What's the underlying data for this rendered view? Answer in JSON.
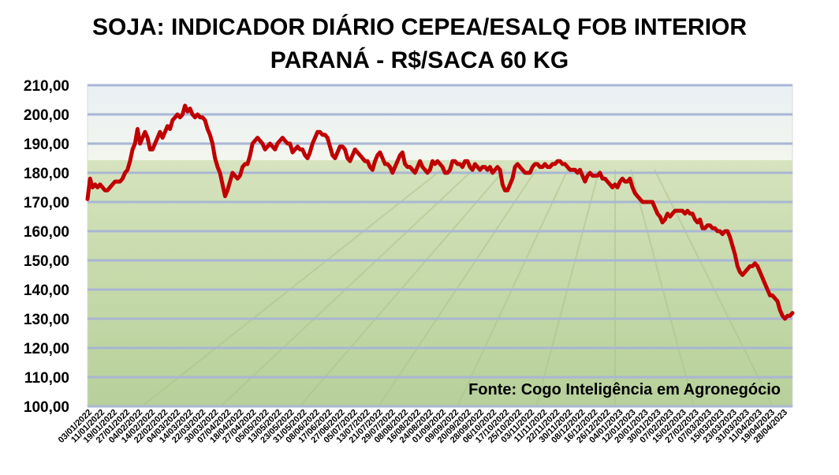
{
  "chart_data": {
    "type": "line",
    "title": "SOJA: INDICADOR DIÁRIO CEPEA/ESALQ FOB INTERIOR",
    "subtitle": "PARANÁ - R$/SACA 60 KG",
    "annotation": "Fonte: Cogo Inteligência em Agronegócio",
    "ylim": [
      100,
      210
    ],
    "yticks": [
      "100,00",
      "110,00",
      "120,00",
      "130,00",
      "140,00",
      "150,00",
      "160,00",
      "170,00",
      "180,00",
      "190,00",
      "200,00",
      "210,00"
    ],
    "xticks": [
      "03/01/2022",
      "11/01/2022",
      "19/01/2022",
      "27/01/2022",
      "04/02/2022",
      "14/02/2022",
      "22/02/2022",
      "04/03/2022",
      "14/03/2022",
      "22/03/2022",
      "30/03/2022",
      "07/04/2022",
      "18/04/2022",
      "27/04/2022",
      "05/05/2022",
      "13/05/2022",
      "23/05/2022",
      "31/05/2022",
      "08/06/2022",
      "17/06/2022",
      "27/06/2022",
      "05/07/2022",
      "13/07/2022",
      "21/07/2022",
      "29/07/2022",
      "08/08/2022",
      "16/08/2022",
      "24/08/2022",
      "01/09/2022",
      "09/09/2022",
      "20/09/2022",
      "28/09/2022",
      "06/10/2022",
      "17/10/2022",
      "25/10/2022",
      "03/11/2022",
      "11/11/2022",
      "22/11/2022",
      "30/11/2022",
      "08/12/2022",
      "16/12/2022",
      "26/12/2022",
      "04/01/2023",
      "12/01/2023",
      "20/01/2023",
      "30/01/2023",
      "07/02/2023",
      "15/02/2023",
      "27/02/2023",
      "07/03/2023",
      "15/03/2023",
      "23/03/2023",
      "31/03/2023",
      "11/04/2023",
      "19/04/2023",
      "28/04/2023"
    ],
    "grid": true,
    "legend": "none",
    "line_color": "#c00000",
    "grid_color": "#a9b6d3",
    "series": [
      {
        "values": [
          171,
          178,
          175,
          176,
          175,
          176,
          175,
          174,
          174,
          175,
          176,
          177,
          177,
          177,
          178,
          180,
          181,
          184,
          188,
          190,
          195,
          190,
          192,
          194,
          192,
          188,
          188,
          190,
          192,
          194,
          192,
          194,
          196,
          195,
          198,
          199,
          200,
          199,
          200,
          203,
          201,
          202,
          200,
          199,
          200,
          199,
          199,
          198,
          195,
          193,
          190,
          185,
          182,
          180,
          176,
          172,
          174,
          177,
          180,
          179,
          178,
          179,
          182,
          183,
          183,
          186,
          190,
          191,
          192,
          191,
          190,
          188,
          189,
          190,
          189,
          188,
          190,
          191,
          192,
          191,
          190,
          190,
          187,
          188,
          189,
          188,
          188,
          186,
          185,
          187,
          190,
          192,
          194,
          194,
          193,
          193,
          192,
          189,
          186,
          185,
          187,
          189,
          189,
          188,
          185,
          184,
          186,
          188,
          187,
          186,
          185,
          184,
          184,
          182,
          181,
          184,
          186,
          187,
          185,
          183,
          183,
          182,
          180,
          182,
          184,
          186,
          187,
          183,
          182,
          182,
          181,
          180,
          182,
          184,
          182,
          181,
          180,
          181,
          184,
          183,
          184,
          183,
          182,
          180,
          180,
          181,
          184,
          184,
          183,
          183,
          182,
          184,
          184,
          182,
          181,
          183,
          182,
          181,
          182,
          182,
          181,
          182,
          180,
          181,
          182,
          181,
          176,
          174,
          174,
          176,
          178,
          182,
          183,
          182,
          181,
          180,
          180,
          180,
          182,
          183,
          183,
          182,
          182,
          183,
          182,
          182,
          183,
          183,
          184,
          184,
          183,
          183,
          182,
          181,
          181,
          181,
          180,
          181,
          179,
          177,
          179,
          180,
          179,
          179,
          179,
          180,
          178,
          178,
          177,
          176,
          175,
          176,
          175,
          177,
          178,
          177,
          177,
          178,
          175,
          173,
          172,
          171,
          170,
          170,
          170,
          170,
          170,
          168,
          166,
          165,
          163,
          164,
          166,
          165,
          166,
          167,
          167,
          167,
          167,
          166,
          167,
          166,
          166,
          164,
          163,
          164,
          161,
          161,
          162,
          162,
          161,
          161,
          160,
          160,
          159,
          160,
          160,
          158,
          155,
          152,
          148,
          146,
          145,
          146,
          147,
          148,
          148,
          149,
          148,
          146,
          144,
          142,
          140,
          138,
          138,
          137,
          136,
          133,
          131,
          130,
          131,
          131,
          132
        ]
      }
    ]
  }
}
